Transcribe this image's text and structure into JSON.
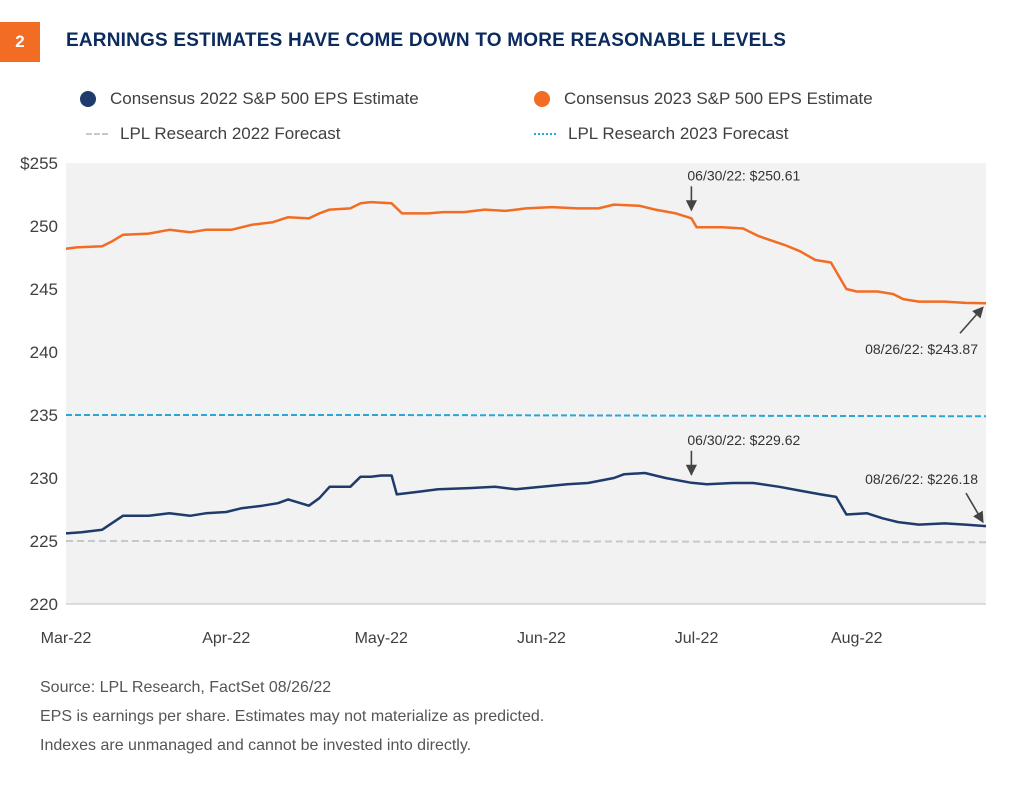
{
  "figure": {
    "number": "2",
    "title": "EARNINGS ESTIMATES HAVE COME DOWN TO MORE REASONABLE LEVELS"
  },
  "legend": {
    "s2022": "Consensus  2022 S&P 500 EPS Estimate",
    "s2023": "Consensus  2023 S&P 500 EPS Estimate",
    "f2022": "LPL Research 2022 Forecast",
    "f2023": "LPL Research 2023 Forecast"
  },
  "footnotes": [
    "Source: LPL Research, FactSet  08/26/22",
    "EPS is earnings per share. Estimates may not materialize as predicted.",
    "Indexes are unmanaged and cannot be invested into directly."
  ],
  "colors": {
    "badge": "#f26c23",
    "title": "#0b2a5e",
    "s2023": "#f26c23",
    "s2022": "#1f3b6b",
    "f2023": "#2aa7d8",
    "f2022": "#c8c8c8",
    "plot_bg": "#f2f2f3"
  },
  "chart_data": {
    "type": "line",
    "xlim": [
      "2022-03-01",
      "2022-08-26"
    ],
    "ylim": [
      220,
      255
    ],
    "y_ticks": [
      {
        "value": 255,
        "label": "$255"
      },
      {
        "value": 250,
        "label": "250"
      },
      {
        "value": 245,
        "label": "245"
      },
      {
        "value": 240,
        "label": "240"
      },
      {
        "value": 235,
        "label": "235"
      },
      {
        "value": 230,
        "label": "230"
      },
      {
        "value": 225,
        "label": "225"
      },
      {
        "value": 220,
        "label": "220"
      }
    ],
    "x_ticks": [
      {
        "date": "2022-03-01",
        "label": "Mar-22"
      },
      {
        "date": "2022-04-01",
        "label": "Apr-22"
      },
      {
        "date": "2022-05-01",
        "label": "May-22"
      },
      {
        "date": "2022-06-01",
        "label": "Jun-22"
      },
      {
        "date": "2022-07-01",
        "label": "Jul-22"
      },
      {
        "date": "2022-08-01",
        "label": "Aug-22"
      }
    ],
    "series": [
      {
        "name": "Consensus  2023 S&P 500 EPS Estimate",
        "key": "s2023",
        "style": "solid",
        "points": [
          [
            "2022-03-01",
            248.2
          ],
          [
            "2022-03-03",
            248.3
          ],
          [
            "2022-03-08",
            248.4
          ],
          [
            "2022-03-10",
            248.8
          ],
          [
            "2022-03-12",
            249.3
          ],
          [
            "2022-03-17",
            249.4
          ],
          [
            "2022-03-21",
            249.7
          ],
          [
            "2022-03-25",
            249.5
          ],
          [
            "2022-03-28",
            249.7
          ],
          [
            "2022-04-02",
            249.7
          ],
          [
            "2022-04-06",
            250.1
          ],
          [
            "2022-04-10",
            250.3
          ],
          [
            "2022-04-13",
            250.7
          ],
          [
            "2022-04-17",
            250.6
          ],
          [
            "2022-04-19",
            251.0
          ],
          [
            "2022-04-21",
            251.3
          ],
          [
            "2022-04-25",
            251.4
          ],
          [
            "2022-04-27",
            251.8
          ],
          [
            "2022-04-29",
            251.9
          ],
          [
            "2022-05-03",
            251.8
          ],
          [
            "2022-05-05",
            251.0
          ],
          [
            "2022-05-10",
            251.0
          ],
          [
            "2022-05-13",
            251.1
          ],
          [
            "2022-05-17",
            251.1
          ],
          [
            "2022-05-21",
            251.3
          ],
          [
            "2022-05-25",
            251.2
          ],
          [
            "2022-05-29",
            251.4
          ],
          [
            "2022-06-03",
            251.5
          ],
          [
            "2022-06-08",
            251.4
          ],
          [
            "2022-06-12",
            251.4
          ],
          [
            "2022-06-15",
            251.7
          ],
          [
            "2022-06-20",
            251.6
          ],
          [
            "2022-06-23",
            251.3
          ],
          [
            "2022-06-27",
            251.0
          ],
          [
            "2022-06-30",
            250.61
          ],
          [
            "2022-07-01",
            249.9
          ],
          [
            "2022-07-06",
            249.9
          ],
          [
            "2022-07-10",
            249.8
          ],
          [
            "2022-07-13",
            249.2
          ],
          [
            "2022-07-18",
            248.5
          ],
          [
            "2022-07-21",
            248.0
          ],
          [
            "2022-07-24",
            247.3
          ],
          [
            "2022-07-27",
            247.1
          ],
          [
            "2022-07-30",
            245.0
          ],
          [
            "2022-08-01",
            244.8
          ],
          [
            "2022-08-05",
            244.8
          ],
          [
            "2022-08-08",
            244.6
          ],
          [
            "2022-08-10",
            244.2
          ],
          [
            "2022-08-13",
            244.0
          ],
          [
            "2022-08-18",
            244.0
          ],
          [
            "2022-08-22",
            243.9
          ],
          [
            "2022-08-26",
            243.87
          ]
        ]
      },
      {
        "name": "LPL Research 2023 Forecast",
        "key": "f2023",
        "style": "dashed",
        "points": [
          [
            "2022-03-01",
            235.0
          ],
          [
            "2022-05-01",
            235.0
          ],
          [
            "2022-08-26",
            234.9
          ]
        ]
      },
      {
        "name": "Consensus  2022 S&P 500 EPS Estimate",
        "key": "s2022",
        "style": "solid",
        "points": [
          [
            "2022-03-01",
            225.6
          ],
          [
            "2022-03-04",
            225.7
          ],
          [
            "2022-03-08",
            225.9
          ],
          [
            "2022-03-12",
            227.0
          ],
          [
            "2022-03-17",
            227.0
          ],
          [
            "2022-03-21",
            227.2
          ],
          [
            "2022-03-25",
            227.0
          ],
          [
            "2022-03-28",
            227.2
          ],
          [
            "2022-04-01",
            227.3
          ],
          [
            "2022-04-04",
            227.6
          ],
          [
            "2022-04-08",
            227.8
          ],
          [
            "2022-04-11",
            228.0
          ],
          [
            "2022-04-13",
            228.3
          ],
          [
            "2022-04-17",
            227.8
          ],
          [
            "2022-04-19",
            228.4
          ],
          [
            "2022-04-21",
            229.3
          ],
          [
            "2022-04-25",
            229.3
          ],
          [
            "2022-04-27",
            230.1
          ],
          [
            "2022-04-29",
            230.1
          ],
          [
            "2022-05-01",
            230.2
          ],
          [
            "2022-05-03",
            230.2
          ],
          [
            "2022-05-04",
            228.7
          ],
          [
            "2022-05-08",
            228.9
          ],
          [
            "2022-05-12",
            229.1
          ],
          [
            "2022-05-18",
            229.2
          ],
          [
            "2022-05-23",
            229.3
          ],
          [
            "2022-05-27",
            229.1
          ],
          [
            "2022-06-01",
            229.3
          ],
          [
            "2022-06-06",
            229.5
          ],
          [
            "2022-06-10",
            229.6
          ],
          [
            "2022-06-15",
            230.0
          ],
          [
            "2022-06-17",
            230.3
          ],
          [
            "2022-06-21",
            230.4
          ],
          [
            "2022-06-25",
            230.0
          ],
          [
            "2022-06-30",
            229.62
          ],
          [
            "2022-07-03",
            229.5
          ],
          [
            "2022-07-08",
            229.6
          ],
          [
            "2022-07-12",
            229.6
          ],
          [
            "2022-07-17",
            229.3
          ],
          [
            "2022-07-21",
            229.0
          ],
          [
            "2022-07-25",
            228.7
          ],
          [
            "2022-07-28",
            228.5
          ],
          [
            "2022-07-30",
            227.1
          ],
          [
            "2022-08-03",
            227.2
          ],
          [
            "2022-08-06",
            226.8
          ],
          [
            "2022-08-09",
            226.5
          ],
          [
            "2022-08-13",
            226.3
          ],
          [
            "2022-08-18",
            226.4
          ],
          [
            "2022-08-22",
            226.3
          ],
          [
            "2022-08-26",
            226.18
          ]
        ]
      },
      {
        "name": "LPL Research 2022 Forecast",
        "key": "f2022",
        "style": "dashed",
        "points": [
          [
            "2022-03-01",
            225.0
          ],
          [
            "2022-05-01",
            225.0
          ],
          [
            "2022-08-26",
            224.9
          ]
        ]
      }
    ],
    "annotations": [
      {
        "text": "06/30/22: $250.61",
        "date": "2022-06-30",
        "value": 250.61,
        "placement": "above"
      },
      {
        "text": "08/26/22: $243.87",
        "date": "2022-08-26",
        "value": 243.87,
        "placement": "below-left"
      },
      {
        "text": "06/30/22: $229.62",
        "date": "2022-06-30",
        "value": 229.62,
        "placement": "above"
      },
      {
        "text": "08/26/22: $226.18",
        "date": "2022-08-26",
        "value": 226.18,
        "placement": "above-left"
      }
    ]
  }
}
